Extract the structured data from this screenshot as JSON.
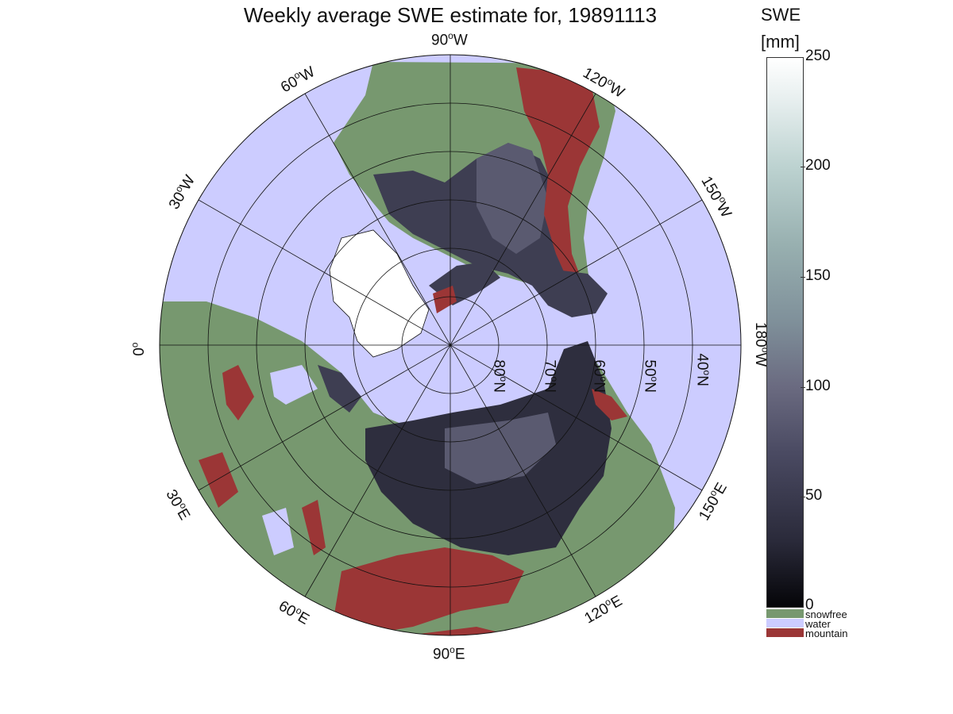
{
  "title": "Weekly average SWE estimate for, 19891113",
  "colorbar": {
    "title_line1": "SWE",
    "title_line2": "[mm]",
    "ticks": [
      "250",
      "200",
      "150",
      "100",
      "50",
      "0"
    ],
    "categories": [
      {
        "label": "snowfree",
        "color": "#77986f"
      },
      {
        "label": "water",
        "color": "#ccccff"
      },
      {
        "label": "mountain",
        "color": "#9b3636"
      }
    ]
  },
  "longitude_labels": {
    "lon_90w": {
      "base": "90",
      "sup": "o",
      "suffix": "W"
    },
    "lon_120w": {
      "base": "120",
      "sup": "o",
      "suffix": "W"
    },
    "lon_60w": {
      "base": "60",
      "sup": "o",
      "suffix": "W"
    },
    "lon_150w": {
      "base": "150",
      "sup": "o",
      "suffix": "W"
    },
    "lon_30w": {
      "base": "30",
      "sup": "o",
      "suffix": "W"
    },
    "lon_0": {
      "base": "0",
      "sup": "o",
      "suffix": ""
    },
    "lon_180w": {
      "base": "180",
      "sup": "o",
      "suffix": "W"
    },
    "lon_30e": {
      "base": "30",
      "sup": "o",
      "suffix": "E"
    },
    "lon_150e": {
      "base": "150",
      "sup": "o",
      "suffix": "E"
    },
    "lon_60e": {
      "base": "60",
      "sup": "o",
      "suffix": "E"
    },
    "lon_120e": {
      "base": "120",
      "sup": "o",
      "suffix": "E"
    },
    "lon_90e": {
      "base": "90",
      "sup": "o",
      "suffix": "E"
    }
  },
  "latitude_labels": {
    "lat_80n": {
      "base": "80",
      "sup": "o",
      "suffix": "N"
    },
    "lat_70n": {
      "base": "70",
      "sup": "o",
      "suffix": "N"
    },
    "lat_60n": {
      "base": "60",
      "sup": "o",
      "suffix": "N"
    },
    "lat_50n": {
      "base": "50",
      "sup": "o",
      "suffix": "N"
    },
    "lat_40n": {
      "base": "40",
      "sup": "o",
      "suffix": "N"
    }
  },
  "colors": {
    "water": "#ccccff",
    "snowfree": "#77986f",
    "mountain": "#9b3636",
    "snow_low": "#1a1a24",
    "snow_mid": "#50506a",
    "ice_sheet": "#ffffff"
  }
}
